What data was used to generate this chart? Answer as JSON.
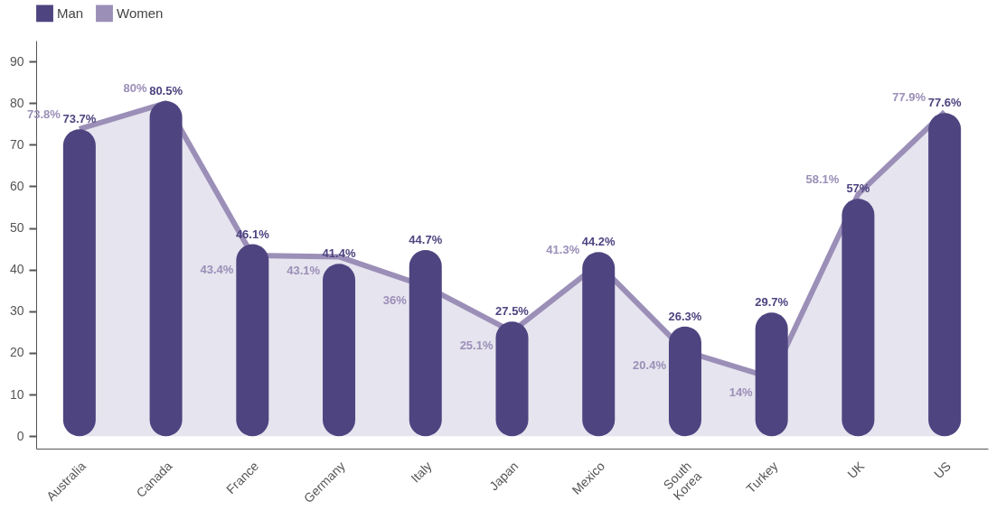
{
  "chart_data": {
    "type": "bar",
    "categories": [
      "Australia",
      "Canada",
      "France",
      "Germany",
      "Italy",
      "Japan",
      "Mexico",
      "South Korea",
      "Turkey",
      "UK",
      "US"
    ],
    "series": [
      {
        "name": "Man",
        "color": "#4e4480",
        "values": [
          73.7,
          80.5,
          46.1,
          41.4,
          44.7,
          27.5,
          44.2,
          26.3,
          29.7,
          57,
          77.6
        ],
        "value_labels": [
          "73.7%",
          "80.5%",
          "46.1%",
          "41.4%",
          "44.7%",
          "27.5%",
          "44.2%",
          "26.3%",
          "29.7%",
          "57%",
          "77.6%"
        ]
      },
      {
        "name": "Women",
        "type": "area",
        "color": "#9b8fb8",
        "values": [
          73.8,
          80,
          43.4,
          43.1,
          36,
          25.1,
          41.3,
          20.4,
          14,
          58.1,
          77.9
        ],
        "value_labels": [
          "73.8%",
          "80%",
          "43.4%",
          "43.1%",
          "36%",
          "25.1%",
          "41.3%",
          "20.4%",
          "14%",
          "58.1%",
          "77.9%"
        ]
      }
    ],
    "ylim": [
      -3,
      95
    ],
    "yticks": [
      0,
      10,
      20,
      30,
      40,
      50,
      60,
      70,
      80,
      90
    ],
    "grid": false,
    "legend": "top"
  }
}
